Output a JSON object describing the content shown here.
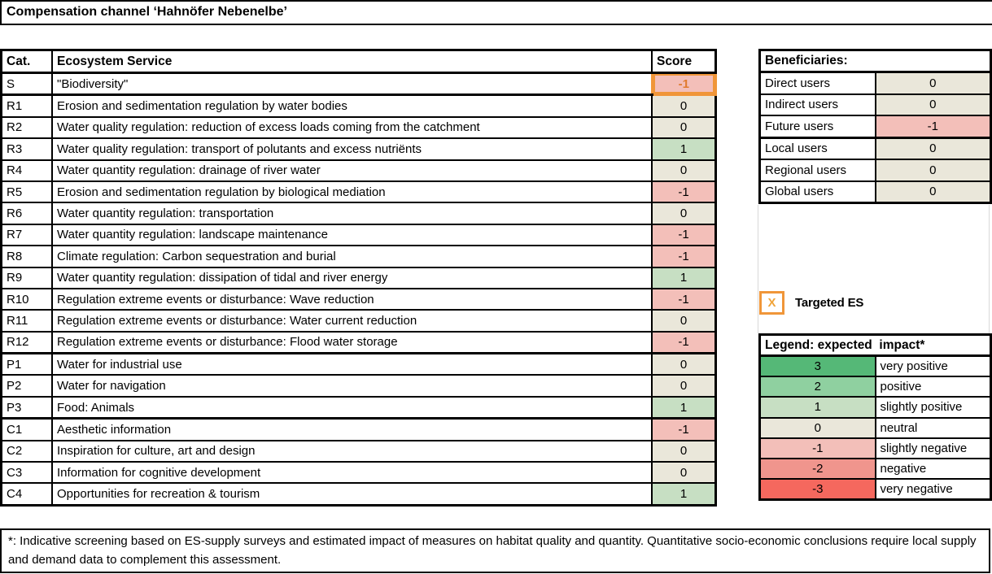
{
  "title": "Compensation channel ‘Hahnöfer Nebenelbe’",
  "es_table": {
    "headers": {
      "cat": "Cat.",
      "service": "Ecosystem Service",
      "score": "Score"
    },
    "rows": [
      {
        "cat": "S",
        "service": "\"Biodiversity\"",
        "score": "-1",
        "level": "neg1",
        "targeted": true,
        "group_end": true
      },
      {
        "cat": "R1",
        "service": "Erosion and sedimentation regulation by water bodies",
        "score": "0",
        "level": "neutral"
      },
      {
        "cat": "R2",
        "service": "Water quality regulation: reduction of excess loads coming from the catchment",
        "score": "0",
        "level": "neutral"
      },
      {
        "cat": "R3",
        "service": "Water quality regulation: transport of polutants and excess nutriënts",
        "score": "1",
        "level": "pos1"
      },
      {
        "cat": "R4",
        "service": "Water quantity regulation: drainage of river water",
        "score": "0",
        "level": "neutral"
      },
      {
        "cat": "R5",
        "service": "Erosion and sedimentation regulation by biological mediation",
        "score": "-1",
        "level": "neg1"
      },
      {
        "cat": "R6",
        "service": "Water quantity regulation: transportation",
        "score": "0",
        "level": "neutral"
      },
      {
        "cat": "R7",
        "service": "Water quantity regulation: landscape maintenance",
        "score": "-1",
        "level": "neg1"
      },
      {
        "cat": "R8",
        "service": "Climate regulation: Carbon sequestration and burial",
        "score": "-1",
        "level": "neg1"
      },
      {
        "cat": "R9",
        "service": "Water quantity regulation: dissipation of tidal and river energy",
        "score": "1",
        "level": "pos1"
      },
      {
        "cat": "R10",
        "service": "Regulation extreme events or disturbance: Wave reduction",
        "score": "-1",
        "level": "neg1"
      },
      {
        "cat": "R11",
        "service": "Regulation extreme events or disturbance: Water current reduction",
        "score": "0",
        "level": "neutral"
      },
      {
        "cat": "R12",
        "service": "Regulation extreme events or disturbance: Flood water storage",
        "score": "-1",
        "level": "neg1",
        "group_end": true
      },
      {
        "cat": "P1",
        "service": "Water for industrial use",
        "score": "0",
        "level": "neutral"
      },
      {
        "cat": "P2",
        "service": "Water for navigation",
        "score": "0",
        "level": "neutral"
      },
      {
        "cat": "P3",
        "service": "Food: Animals",
        "score": "1",
        "level": "pos1",
        "group_end": true
      },
      {
        "cat": "C1",
        "service": "Aesthetic information",
        "score": "-1",
        "level": "neg1"
      },
      {
        "cat": "C2",
        "service": "Inspiration for culture, art and design",
        "score": "0",
        "level": "neutral"
      },
      {
        "cat": "C3",
        "service": "Information for cognitive development",
        "score": "0",
        "level": "neutral"
      },
      {
        "cat": "C4",
        "service": "Opportunities for recreation & tourism",
        "score": "1",
        "level": "pos1"
      }
    ]
  },
  "beneficiaries": {
    "header": "Beneficiaries:",
    "rows": [
      {
        "label": "Direct users",
        "score": "0",
        "level": "neutral"
      },
      {
        "label": "Indirect users",
        "score": "0",
        "level": "neutral"
      },
      {
        "label": "Future users",
        "score": "-1",
        "level": "neg1",
        "group_end": true
      },
      {
        "label": "Local users",
        "score": "0",
        "level": "neutral"
      },
      {
        "label": "Regional users",
        "score": "0",
        "level": "neutral"
      },
      {
        "label": "Global users",
        "score": "0",
        "level": "neutral"
      }
    ]
  },
  "targeted": {
    "marker": "X",
    "label": "Targeted ES"
  },
  "legend": {
    "header": "Legend: expected  impact*",
    "rows": [
      {
        "value": "3",
        "label": "very positive",
        "level": "pos3"
      },
      {
        "value": "2",
        "label": "positive",
        "level": "pos2"
      },
      {
        "value": "1",
        "label": "slightly positive",
        "level": "pos1"
      },
      {
        "value": "0",
        "label": "neutral",
        "level": "neutral"
      },
      {
        "value": "-1",
        "label": "slightly negative",
        "level": "neg1"
      },
      {
        "value": "-2",
        "label": "negative",
        "level": "neg2"
      },
      {
        "value": "-3",
        "label": "very negative",
        "level": "neg3"
      }
    ]
  },
  "footnote": "*: Indicative screening based on ES-supply surveys and estimated impact of measures on habitat quality and quantity. Quantitative socio-economic conclusions require local supply and demand data to complement this assessment.",
  "colors": {
    "pos3": "#55b877",
    "pos2": "#8fd0a0",
    "pos1": "#c7dfc3",
    "neutral": "#eae7da",
    "neg1": "#f3bfb9",
    "neg2": "#f0958d",
    "neg3": "#f5685e",
    "targeted_border": "#f09639",
    "targeted_text": "#e07b2e",
    "marker_x": "#f0a43a"
  }
}
